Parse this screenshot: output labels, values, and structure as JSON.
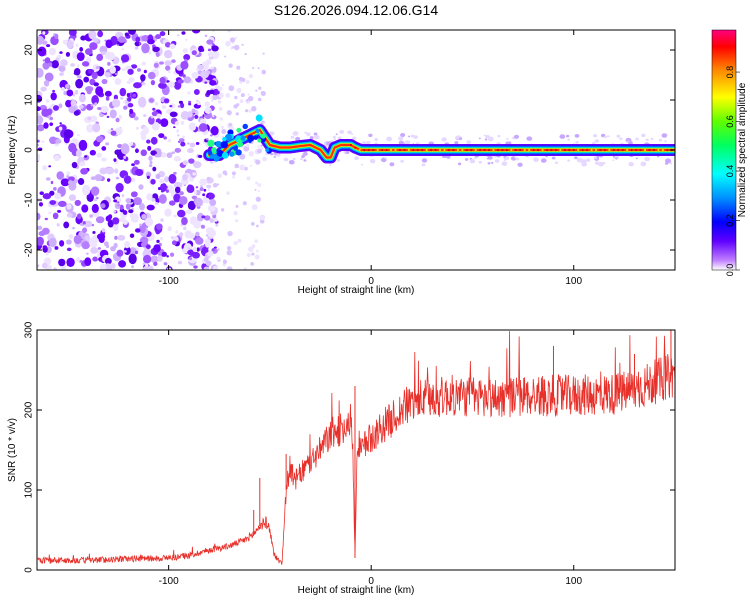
{
  "title": "S126.2026.094.12.06.G14",
  "chart_data": [
    {
      "type": "heatmap",
      "title": "S126.2026.094.12.06.G14",
      "xlabel": "Height of straight line (km)",
      "ylabel": "Frequency (Hz)",
      "xlim": [
        -165,
        150
      ],
      "ylim": [
        -24,
        24
      ],
      "xticks": [
        -100,
        0,
        100
      ],
      "xtick_labels": [
        "-100",
        "0",
        "100"
      ],
      "yticks": [
        -20,
        -10,
        0,
        10,
        20
      ],
      "ytick_labels": [
        "-20",
        "-10",
        "0",
        "10",
        "20"
      ],
      "colorbar": {
        "label": "Normalized spectral amplitude",
        "range": [
          0.0,
          0.97
        ],
        "ticks": [
          0.0,
          0.2,
          0.4,
          0.6,
          0.8
        ],
        "tick_labels": [
          "0.0",
          "0.2",
          "0.4",
          "0.6",
          "0.8"
        ]
      },
      "noise_region_km": [
        -165,
        -80
      ],
      "transition_region_km": [
        -80,
        -55
      ],
      "tracked_frequency_hz": {
        "x": [
          -80,
          -75,
          -70,
          -65,
          -60,
          -55,
          -50,
          -45,
          -40,
          -35,
          -30,
          -25,
          -22,
          -20,
          -18,
          -15,
          -12,
          -10,
          -8,
          -5,
          -2,
          0,
          20,
          40,
          60,
          80,
          100,
          120,
          150
        ],
        "y": [
          -1,
          -1,
          1,
          2,
          3,
          4,
          1,
          0.5,
          0.5,
          0.8,
          1,
          0,
          -1.5,
          -1.5,
          0.5,
          1,
          1,
          1,
          0.5,
          0,
          0,
          0,
          0,
          0,
          0,
          0,
          0,
          0,
          0
        ]
      }
    },
    {
      "type": "line",
      "xlabel": "Height of straight line (km)",
      "ylabel": "SNR (10 * v/v)",
      "xlim": [
        -165,
        150
      ],
      "ylim": [
        0,
        300
      ],
      "xticks": [
        -100,
        0,
        100
      ],
      "xtick_labels": [
        "-100",
        "0",
        "100"
      ],
      "yticks": [
        0,
        100,
        200,
        300
      ],
      "ytick_labels": [
        "0",
        "100",
        "200",
        "300"
      ],
      "color": "#e8302a",
      "series": [
        {
          "name": "SNR",
          "x": [
            -165,
            -140,
            -120,
            -100,
            -90,
            -80,
            -70,
            -62,
            -58,
            -55,
            -52,
            -50,
            -48,
            -46,
            -44,
            -42,
            -40,
            -38,
            -35,
            -30,
            -25,
            -20,
            -15,
            -10,
            -9,
            -8,
            -7,
            -6,
            -5,
            -2,
            0,
            5,
            10,
            15,
            20,
            25,
            30,
            40,
            60,
            80,
            100,
            120,
            130,
            140,
            150
          ],
          "values": [
            12,
            12,
            14,
            15,
            18,
            25,
            30,
            38,
            45,
            55,
            60,
            50,
            20,
            12,
            10,
            100,
            130,
            110,
            120,
            135,
            150,
            170,
            175,
            190,
            140,
            15,
            140,
            145,
            150,
            160,
            165,
            178,
            188,
            200,
            210,
            213,
            215,
            218,
            215,
            218,
            218,
            220,
            225,
            235,
            245
          ]
        }
      ],
      "spikes": {
        "x": [
          -58,
          -55,
          -42,
          -8,
          90,
          130,
          148
        ],
        "values": [
          75,
          115,
          145,
          230,
          280,
          270,
          300
        ]
      }
    }
  ]
}
